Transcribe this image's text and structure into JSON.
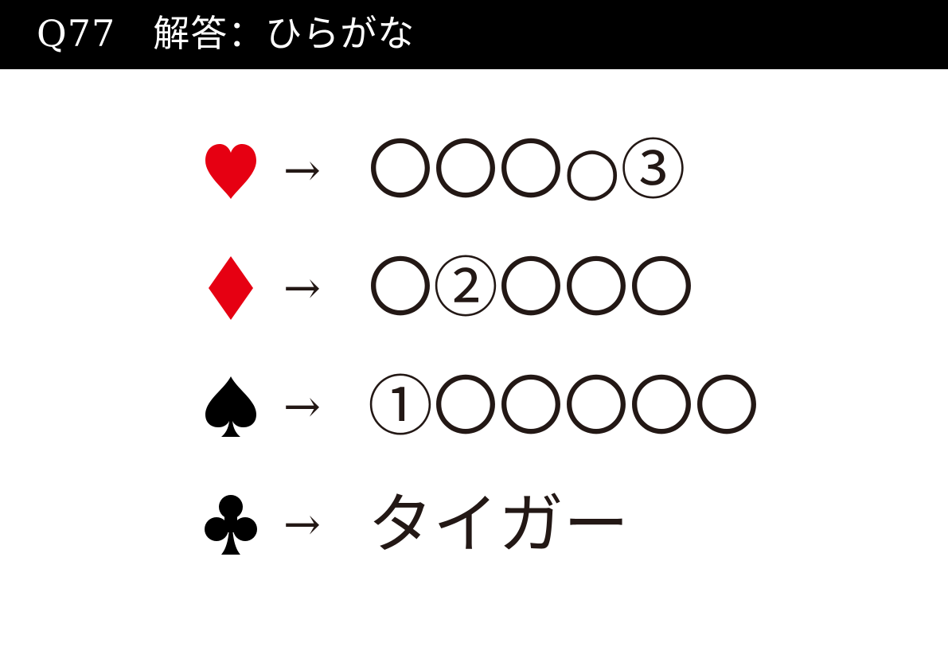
{
  "header": {
    "title": "Q77　解答：ひらがな",
    "background": "#000000",
    "text_color": "#ffffff"
  },
  "rows": [
    {
      "suit": "heart-icon",
      "suit_color": "#e60012",
      "arrow": "→",
      "answer": "〇〇〇○③"
    },
    {
      "suit": "diamond-icon",
      "suit_color": "#e60012",
      "arrow": "→",
      "answer": "〇②〇〇〇"
    },
    {
      "suit": "spade-icon",
      "suit_color": "#000000",
      "arrow": "→",
      "answer": "①〇〇〇〇〇"
    },
    {
      "suit": "club-icon",
      "suit_color": "#000000",
      "arrow": "→",
      "answer": "タイガー"
    }
  ]
}
